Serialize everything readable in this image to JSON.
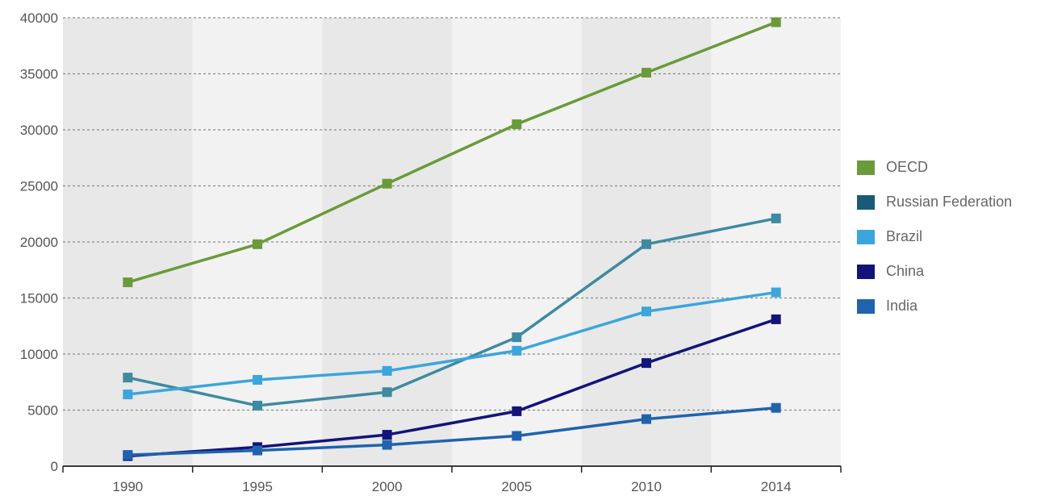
{
  "chart_data": {
    "type": "line",
    "title": "",
    "xlabel": "",
    "ylabel": "",
    "x": [
      "1990",
      "1995",
      "2000",
      "2005",
      "2010",
      "2014"
    ],
    "ylim": [
      0,
      40000
    ],
    "yticks": [
      "0",
      "5000",
      "10000",
      "15000",
      "20000",
      "25000",
      "30000",
      "35000",
      "40000"
    ],
    "grid": true,
    "legend_position": "right",
    "series": [
      {
        "name": "OECD",
        "color": "#6a9a3a",
        "values": [
          16400,
          19800,
          25200,
          30500,
          35100,
          39600
        ]
      },
      {
        "name": "Russian Federation",
        "color": "#3e8aa0",
        "legend_color": "#1a5a78",
        "values": [
          7900,
          5400,
          6600,
          11500,
          19800,
          22100
        ]
      },
      {
        "name": "Brazil",
        "color": "#3aa6dc",
        "values": [
          6400,
          7700,
          8500,
          10300,
          13800,
          15500
        ]
      },
      {
        "name": "China",
        "color": "#14137a",
        "values": [
          900,
          1700,
          2800,
          4900,
          9200,
          13100
        ]
      },
      {
        "name": "India",
        "color": "#1f63ad",
        "values": [
          1000,
          1400,
          1900,
          2700,
          4200,
          5200
        ]
      }
    ]
  }
}
